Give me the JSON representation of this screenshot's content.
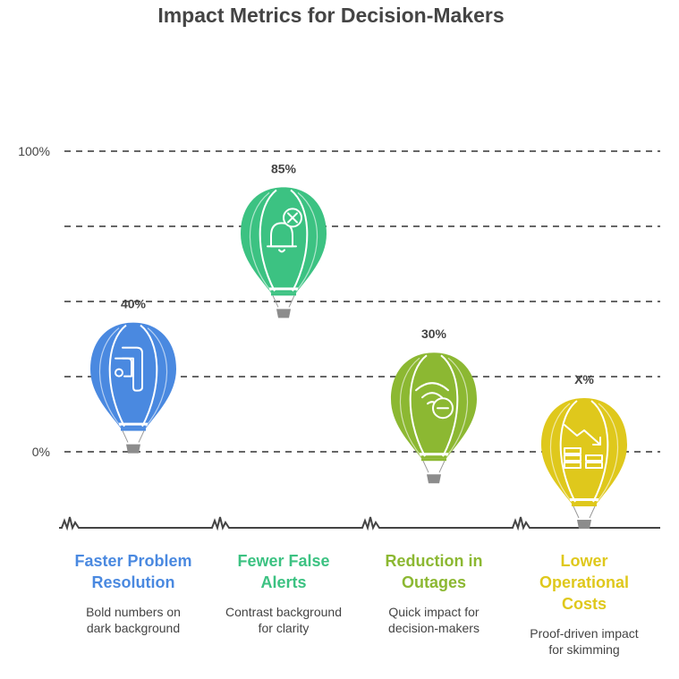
{
  "title": "Impact Metrics for Decision-Makers",
  "chart_data": {
    "type": "bar",
    "style": "hot-air-balloon infographic",
    "title": "Impact Metrics for Decision-Makers",
    "y_ticks": [
      "100%",
      "0%"
    ],
    "grid": "dashed horizontal",
    "categories": [
      "Faster Problem Resolution",
      "Fewer False Alerts",
      "Reduction in Outages",
      "Lower Operational Costs"
    ],
    "value_labels": [
      "40%",
      "85%",
      "30%",
      "X%"
    ],
    "values": [
      40,
      85,
      30,
      null
    ],
    "descriptions": [
      "Bold numbers on dark background",
      "Contrast background for clarity",
      "Quick impact for decision-makers",
      "Proof-driven impact for skimming"
    ],
    "icons": [
      "route-icon",
      "bell-alert-off-icon",
      "wifi-off-icon",
      "coins-trend-down-icon"
    ],
    "colors": [
      "#4a89e0",
      "#3cc282",
      "#8cb832",
      "#dfc81c"
    ],
    "text_colors": [
      "#4a89e0",
      "#3cc282",
      "#8cb832",
      "#dfc81c"
    ]
  }
}
